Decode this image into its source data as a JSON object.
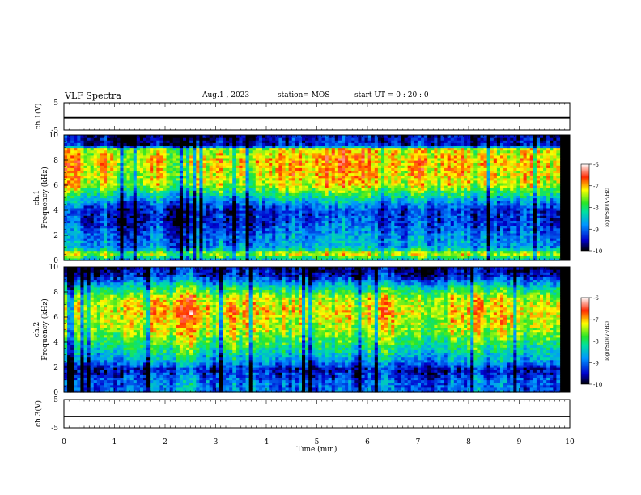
{
  "header": {
    "title": "VLF Spectra",
    "date": "Aug.1 , 2023",
    "station": "station= MOS",
    "start": "start UT = 0 : 20 : 0"
  },
  "chart_data": [
    {
      "type": "line",
      "name": "ch1-waveform",
      "ylabel": "ch.1(V)",
      "ylim": [
        -5,
        5
      ],
      "yticks": [
        "5",
        "-5"
      ],
      "x": [
        0,
        10
      ],
      "y": [
        -0.5,
        -0.5
      ]
    },
    {
      "type": "heatmap",
      "name": "ch1-spectrogram",
      "ylabel": "ch.1 Frequency (kHz)",
      "ylim": [
        0,
        10
      ],
      "yticks": [
        "0",
        "2",
        "4",
        "6",
        "8",
        "10"
      ],
      "xlim": [
        0,
        10
      ],
      "data_extent_min": 9.8,
      "colorbar": {
        "label": "log(PSD)(V²/Hz)",
        "ticks": [
          "-6",
          "-7",
          "-8",
          "-9",
          "-10"
        ],
        "range": [
          -10,
          -6
        ]
      },
      "band_profile_khz": [
        [
          0,
          -8.6
        ],
        [
          0.6,
          -7.2
        ],
        [
          1,
          -8.6
        ],
        [
          1.8,
          -8.8
        ],
        [
          2.2,
          -8.9
        ],
        [
          3,
          -9.2
        ],
        [
          4,
          -9.3
        ],
        [
          4.8,
          -8.6
        ],
        [
          6,
          -7.3
        ],
        [
          7,
          -7.1
        ],
        [
          8,
          -7.0
        ],
        [
          8.9,
          -7.3
        ],
        [
          9.2,
          -9.4
        ],
        [
          10,
          -9.6
        ]
      ]
    },
    {
      "type": "heatmap",
      "name": "ch2-spectrogram",
      "ylabel": "ch.2 Frequency (kHz)",
      "ylim": [
        0,
        10
      ],
      "yticks": [
        "0",
        "2",
        "4",
        "6",
        "8",
        "10"
      ],
      "xlim": [
        0,
        10
      ],
      "data_extent_min": 9.8,
      "colorbar": {
        "label": "log(PSD)(V²/Hz)",
        "ticks": [
          "-6",
          "-7",
          "-8",
          "-9",
          "-10"
        ],
        "range": [
          -10,
          -6
        ]
      },
      "band_profile_khz": [
        [
          0,
          -8.8
        ],
        [
          1,
          -8.9
        ],
        [
          1.8,
          -9.4
        ],
        [
          2.5,
          -8.6
        ],
        [
          3.5,
          -8.0
        ],
        [
          5,
          -7.3
        ],
        [
          6.5,
          -7.0
        ],
        [
          7.5,
          -7.2
        ],
        [
          8.5,
          -8.2
        ],
        [
          9.3,
          -9.3
        ],
        [
          10,
          -9.6
        ]
      ]
    },
    {
      "type": "line",
      "name": "ch3-waveform",
      "ylabel": "ch.3(V)",
      "ylim": [
        -5,
        5
      ],
      "yticks": [
        "5",
        "-5"
      ],
      "x": [
        0,
        10
      ],
      "y": [
        -1,
        -1
      ]
    }
  ],
  "xaxis": {
    "label": "Time (min)",
    "range": [
      0,
      10
    ],
    "ticks": [
      "0",
      "1",
      "2",
      "3",
      "4",
      "5",
      "6",
      "7",
      "8",
      "9",
      "10"
    ]
  },
  "colors": {
    "min": "#000080",
    "low": "#0000ff",
    "mid": "#00ff00",
    "high": "#ffff00",
    "max": "#ff0000"
  }
}
